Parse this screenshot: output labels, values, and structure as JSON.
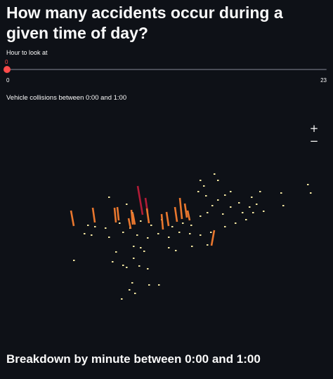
{
  "header": {
    "title": "How many accidents occur during a given time of day?"
  },
  "slider": {
    "label": "Hour to look at",
    "value": "0",
    "min": "0",
    "max": "23",
    "fraction": 0
  },
  "map": {
    "caption": "Vehicle collisions between 0:00 and 1:00",
    "zoom_in": "+",
    "zoom_out": "−",
    "colors": {
      "point": "#f3e6a0",
      "column": "#e9772e",
      "column_high": "#b01c37"
    }
  },
  "breakdown": {
    "title": "Breakdown by minute between 0:00 and 1:00"
  }
}
